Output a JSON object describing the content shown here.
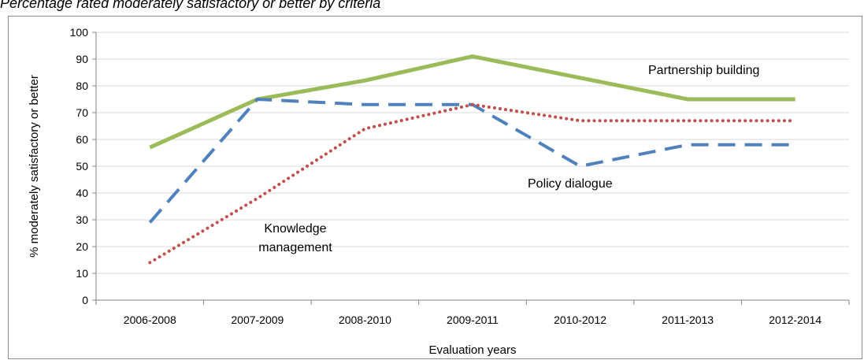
{
  "caption": "Percentage rated moderately satisfactory or better by criteria",
  "chart_data": {
    "type": "line",
    "title": "",
    "xlabel": "Evaluation years",
    "ylabel": "% moderately satisfactory or better",
    "categories": [
      "2006-2008",
      "2007-2009",
      "2008-2010",
      "2009-2011",
      "2010-2012",
      "2011-2013",
      "2012-2014"
    ],
    "ylim": [
      0,
      100
    ],
    "yticks": [
      0,
      10,
      20,
      30,
      40,
      50,
      60,
      70,
      80,
      90,
      100
    ],
    "grid": true,
    "legend": "none",
    "series": [
      {
        "name": "Partnership building",
        "values": [
          57,
          75,
          82,
          91,
          83,
          75,
          75
        ],
        "color": "#9bbb59",
        "style": "solid"
      },
      {
        "name": "Policy dialogue",
        "values": [
          29,
          75,
          73,
          73,
          50,
          58,
          58
        ],
        "color": "#4f81bd",
        "style": "dashed"
      },
      {
        "name": "Knowledge management",
        "values": [
          14,
          38,
          64,
          73,
          67,
          67,
          67
        ],
        "color": "#c0504d",
        "style": "dotted"
      }
    ],
    "annotations": [
      {
        "text": "Partnership building"
      },
      {
        "text": "Policy dialogue"
      },
      {
        "text": "Knowledge"
      },
      {
        "text": "management"
      }
    ]
  }
}
